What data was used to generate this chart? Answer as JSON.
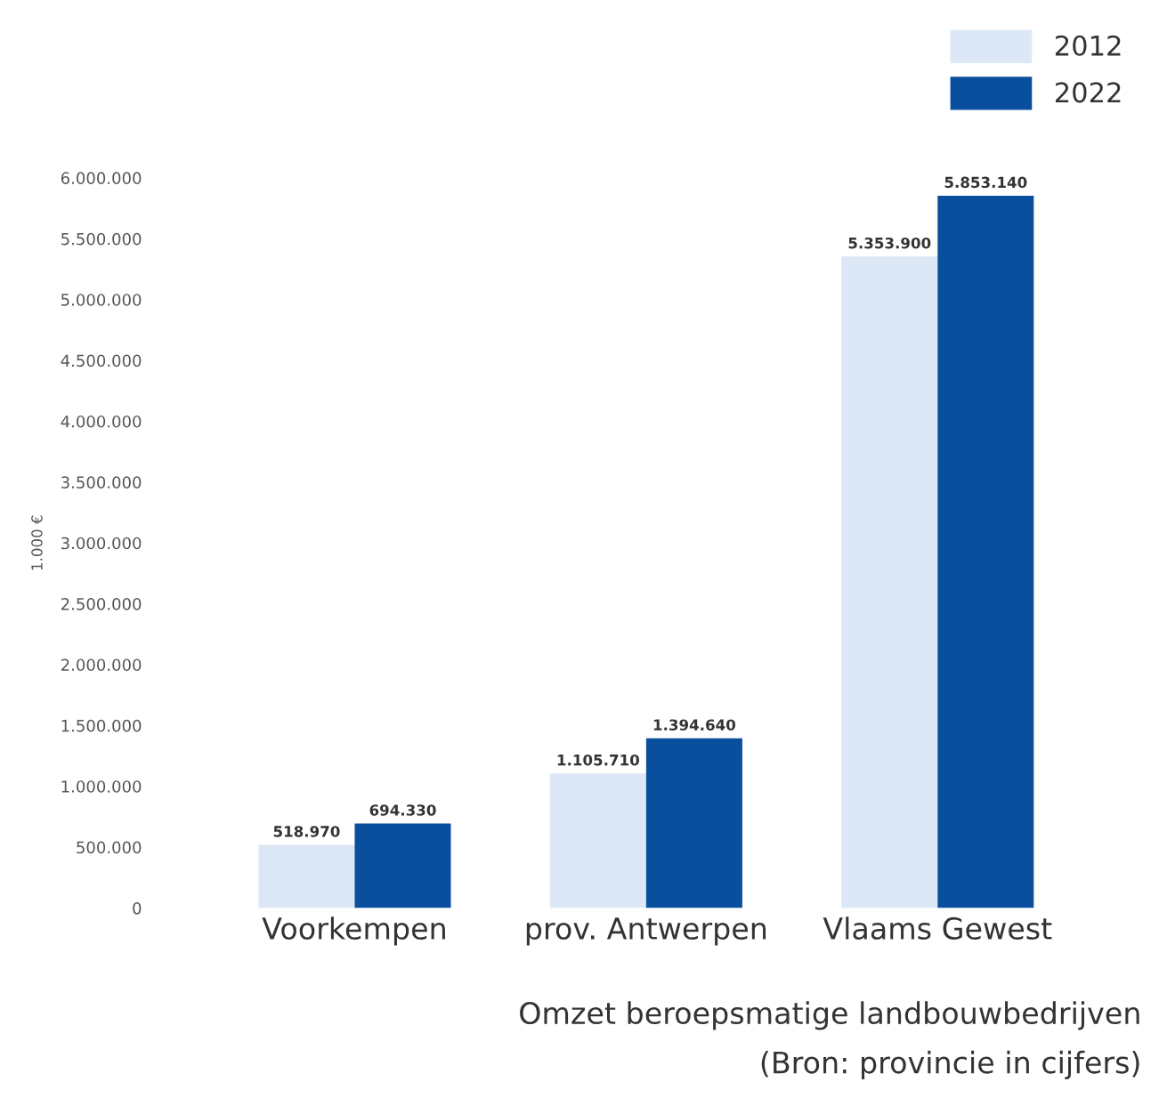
{
  "chart_data": {
    "type": "bar",
    "ylabel": "1.000 €",
    "categories": [
      "Voorkempen",
      "prov. Antwerpen",
      "Vlaams Gewest"
    ],
    "series": [
      {
        "name": "2012",
        "color": "#dce8f5",
        "values": [
          518970,
          1105710,
          5353900
        ],
        "value_labels": [
          "518.970",
          "1.105.710",
          "5.353.900"
        ]
      },
      {
        "name": "2022",
        "color": "#0a4f9e",
        "values": [
          694330,
          1394640,
          5853140
        ],
        "value_labels": [
          "694.330",
          "1.394.640",
          "5.853.140"
        ]
      }
    ],
    "ylim": [
      0,
      6000000
    ],
    "yticks": [
      0,
      {
        "value": 500000,
        "label": "500.000"
      },
      {
        "value": 1000000,
        "label": "1.000.000"
      },
      {
        "value": 1500000,
        "label": "1.500.000"
      },
      {
        "value": 2000000,
        "label": "2.000.000"
      },
      {
        "value": 2500000,
        "label": "2.500.000"
      },
      {
        "value": 3000000,
        "label": "3.000.000"
      },
      {
        "value": 3500000,
        "label": "3.500.000"
      },
      {
        "value": 4000000,
        "label": "4.000.000"
      },
      {
        "value": 4500000,
        "label": "4.500.000"
      },
      {
        "value": 5000000,
        "label": "5.000.000"
      },
      {
        "value": 5500000,
        "label": "5.500.000"
      },
      {
        "value": 6000000,
        "label": "6.000.000"
      }
    ],
    "grid": false,
    "legend": "top right",
    "annotations": [
      "Omzet beroepsmatige landbouwbedrijven",
      "(Bron: provincie in cijfers)"
    ]
  }
}
